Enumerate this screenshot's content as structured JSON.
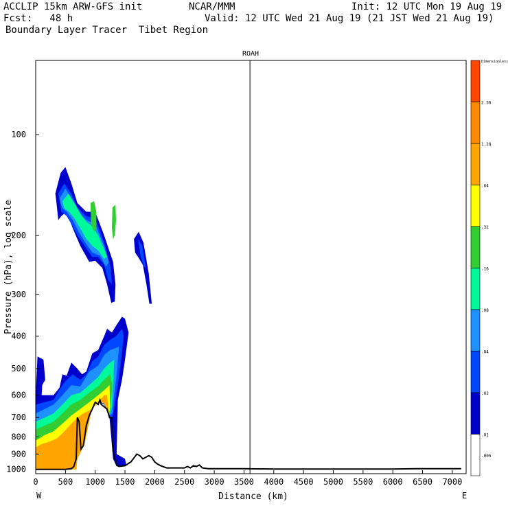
{
  "header": {
    "model": "ACCLIP 15km ARW-GFS init",
    "org": "NCAR/MMM",
    "init": "Init: 12 UTC Mon 19 Aug 19",
    "fcst": "Fcst:   48 h",
    "valid": "Valid: 12 UTC Wed 21 Aug 19 (21 JST Wed 21 Aug 19)",
    "subtitle": "Boundary Layer Tracer  Tibet Region"
  },
  "chart_data": {
    "type": "heatmap",
    "title": "ROAH",
    "xlabel": "Distance (km)",
    "ylabel": "Pressure (hPa), log scale",
    "x_ticks": [
      0,
      500,
      1000,
      1500,
      2000,
      2500,
      3000,
      3500,
      4000,
      4500,
      5000,
      5500,
      6000,
      6500,
      7000
    ],
    "x_tick_labels": [
      "0",
      "500",
      "1000",
      "1500",
      "2000",
      "2500",
      "3000",
      "3500",
      "4000",
      "4500",
      "5000",
      "5500",
      "6000",
      "6500",
      "7000"
    ],
    "xlim": [
      0,
      7200
    ],
    "y_ticks": [
      100,
      200,
      300,
      400,
      500,
      600,
      700,
      800,
      900,
      1000
    ],
    "y_tick_labels": [
      "100",
      "200",
      "300",
      "400",
      "500",
      "600",
      "700",
      "800",
      "900",
      "1000"
    ],
    "ylim": [
      1030,
      60
    ],
    "left_end_label": "W",
    "right_end_label": "E",
    "marker_line_km": 3600,
    "colorbar": {
      "levels": [
        "Dimensionless",
        "2.56",
        "1.28",
        ".64",
        ".32",
        ".16",
        ".08",
        ".04",
        ".02",
        ".01",
        ".005"
      ],
      "colors": [
        "#ff4500",
        "#ff8c00",
        "#ffa500",
        "#ffff00",
        "#32cd32",
        "#00fa9a",
        "#1e90ff",
        "#0047ff",
        "#0000cd",
        "#ffffff"
      ]
    },
    "terrain": {
      "name": "terrain surface",
      "distance_km": [
        0,
        100,
        200,
        300,
        400,
        500,
        600,
        640,
        680,
        700,
        730,
        760,
        800,
        850,
        900,
        950,
        1000,
        1050,
        1080,
        1100,
        1150,
        1200,
        1240,
        1280,
        1300,
        1330,
        1360,
        1400,
        1500,
        1600,
        1700,
        1750,
        1800,
        1850,
        1900,
        1950,
        2000,
        2050,
        2100,
        2200,
        2300,
        2400,
        2500,
        2550,
        2600,
        2650,
        2700,
        2750,
        2800,
        2900,
        3000,
        3500,
        4000,
        5000,
        6000,
        6400,
        6600,
        7000,
        7150
      ],
      "pressure_hPa": [
        1000,
        1000,
        1000,
        1000,
        1000,
        1000,
        995,
        980,
        930,
        700,
        720,
        870,
        850,
        740,
        690,
        660,
        630,
        640,
        620,
        640,
        650,
        660,
        700,
        700,
        880,
        930,
        970,
        980,
        975,
        950,
        900,
        910,
        930,
        920,
        910,
        920,
        950,
        965,
        975,
        990,
        990,
        990,
        990,
        980,
        990,
        975,
        980,
        970,
        990,
        995,
        995,
        995,
        998,
        998,
        998,
        995,
        995,
        995,
        995
      ]
    },
    "tracer_regions": [
      {
        "name": "upper plume",
        "distance_km": [
          250,
          1950
        ],
        "pressure_hPa": [
          125,
          320
        ],
        "max_level": ".32"
      },
      {
        "name": "boundary layer",
        "distance_km": [
          0,
          1560
        ],
        "pressure_hPa": [
          350,
          1000
        ],
        "max_level": "2.56"
      }
    ]
  }
}
